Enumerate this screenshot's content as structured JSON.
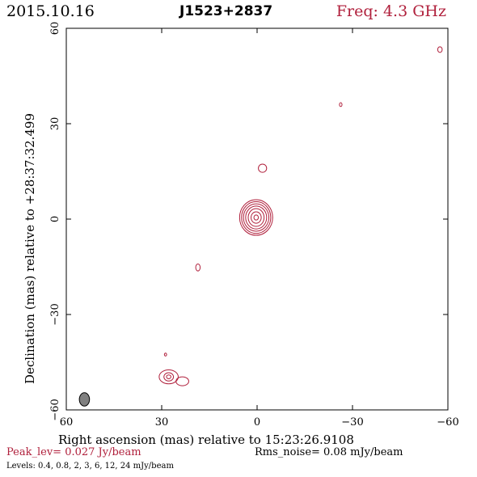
{
  "header": {
    "date": "2015.10.16",
    "source": "J1523+2837",
    "freq": "Freq: 4.3 GHz"
  },
  "footer": {
    "peak": "Peak_lev=  0.027 Jy/beam",
    "rms": "Rms_noise= 0.08 mJy/beam",
    "levels": "Levels: 0.4,  0.8,    2,    3,    6,   12,   24 mJy/beam"
  },
  "colors": {
    "contour": "#b0203c",
    "beam": "#808080",
    "axis": "#000000"
  },
  "chart_data": {
    "type": "contour",
    "xlabel": "Right ascension (mas) relative to 15:23:26.9108",
    "ylabel": "Declination (mas) relative to +28:37:32.499",
    "xlim": [
      60,
      -60
    ],
    "ylim": [
      -60,
      60
    ],
    "x_ticks": [
      60,
      30,
      0,
      -30,
      -60
    ],
    "x_tick_labels": [
      "60",
      "30",
      "0",
      "−30",
      "−60"
    ],
    "y_ticks": [
      -60,
      -30,
      0,
      30,
      60
    ],
    "y_tick_labels": [
      "−60",
      "−30",
      "0",
      "30",
      "60"
    ],
    "levels_mJy": [
      0.4,
      0.8,
      2,
      3,
      6,
      12,
      24
    ],
    "peak_Jy_per_beam": 0.027,
    "rms_mJy_per_beam": 0.08,
    "components": [
      {
        "name": "core",
        "x": 0.3,
        "y": 0.5,
        "contours": [
          {
            "rx": 5.2,
            "ry": 5.6
          },
          {
            "rx": 4.6,
            "ry": 5.0
          },
          {
            "rx": 4.0,
            "ry": 4.3
          },
          {
            "rx": 3.3,
            "ry": 3.6
          },
          {
            "rx": 2.5,
            "ry": 2.8
          },
          {
            "rx": 1.6,
            "ry": 1.8
          },
          {
            "rx": 0.7,
            "ry": 0.8
          }
        ]
      },
      {
        "name": "knot-ne",
        "x": -1.7,
        "y": 16.0,
        "contours": [
          {
            "rx": 1.3,
            "ry": 1.3
          }
        ]
      },
      {
        "name": "knot-se",
        "x": 18.6,
        "y": -15.2,
        "contours": [
          {
            "rx": 0.7,
            "ry": 1.1
          }
        ]
      },
      {
        "name": "knot-ne2",
        "x": -26.3,
        "y": 36.0,
        "contours": [
          {
            "rx": 0.4,
            "ry": 0.6
          }
        ]
      },
      {
        "name": "knot-ne3",
        "x": -57.5,
        "y": 53.3,
        "contours": [
          {
            "rx": 0.7,
            "ry": 0.9
          }
        ]
      },
      {
        "name": "knot-sw-small",
        "x": 28.8,
        "y": -42.6,
        "contours": [
          {
            "rx": 0.35,
            "ry": 0.45
          }
        ]
      },
      {
        "name": "knot-sw",
        "x": 27.8,
        "y": -49.6,
        "contours": [
          {
            "rx": 3.0,
            "ry": 2.2
          },
          {
            "rx": 1.5,
            "ry": 1.3
          },
          {
            "rx": 0.7,
            "ry": 0.6
          }
        ]
      },
      {
        "name": "knot-sw-tail",
        "x": 23.5,
        "y": -51.0,
        "contours": [
          {
            "rx": 2.0,
            "ry": 1.4
          }
        ]
      }
    ],
    "beam": {
      "x": 54.3,
      "y": -56.7,
      "major": 4.2,
      "minor": 3.2,
      "pa_deg": 0
    }
  }
}
